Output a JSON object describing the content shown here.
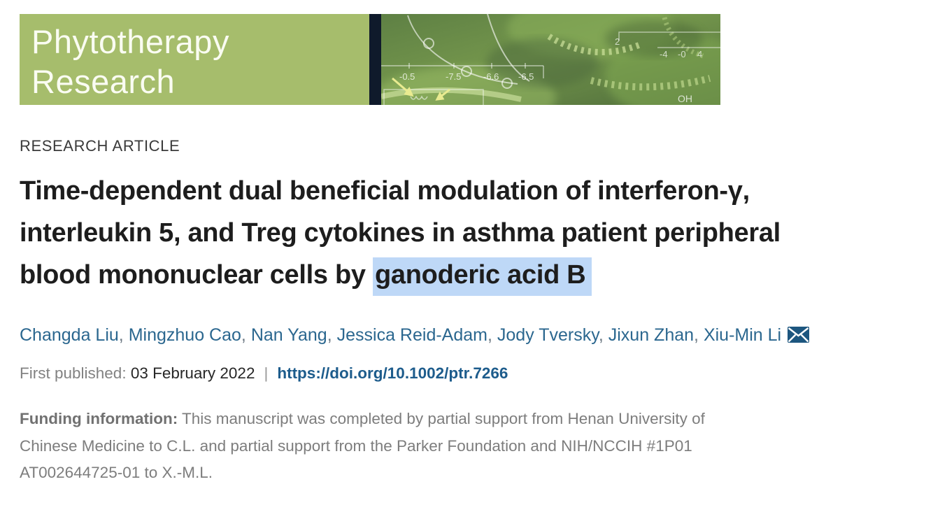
{
  "banner": {
    "journal_title_line1": "Phytotherapy",
    "journal_title_line2": "Research",
    "photo_decor": {
      "axis_numbers": [
        "-0.5",
        "-7.5",
        "-6.6",
        "-6.5"
      ],
      "top_numbers": [
        "2",
        "-4",
        "-0",
        "4"
      ],
      "chem_label": "OH"
    }
  },
  "article": {
    "kicker": "RESEARCH ARTICLE",
    "title_line1": "Time-dependent dual beneficial modulation of interferon-γ,",
    "title_line2": "interleukin 5, and Treg cytokines in asthma patient peripheral",
    "title_line3_pre": "blood mononuclear cells by ",
    "title_highlight": "ganoderic acid B"
  },
  "authors": {
    "names": [
      "Changda Liu",
      "Mingzhuo Cao",
      "Nan Yang",
      "Jessica Reid-Adam",
      "Jody Tversky",
      "Jixun Zhan",
      "Xiu-Min Li"
    ],
    "separator": ", "
  },
  "publication": {
    "first_published_label": "First published:",
    "date": "03 February 2022",
    "separator": "|",
    "doi": "https://doi.org/10.1002/ptr.7266"
  },
  "funding": {
    "label": "Funding information:",
    "line1_rest": " This manuscript was completed by partial support from Henan University of",
    "line2": "Chinese Medicine to C.L. and partial support from the Parker Foundation and NIH/NCCIH #1P01",
    "line3": "AT002644725-01 to X.-M.L."
  },
  "colors": {
    "banner_green": "#a6bd6c",
    "banner_stripe": "#0f1a2b",
    "title_highlight": "#bed8f7",
    "author_link": "#2b678f",
    "doi_link": "#1d5c8c",
    "body_gray": "#7d7d7d"
  }
}
